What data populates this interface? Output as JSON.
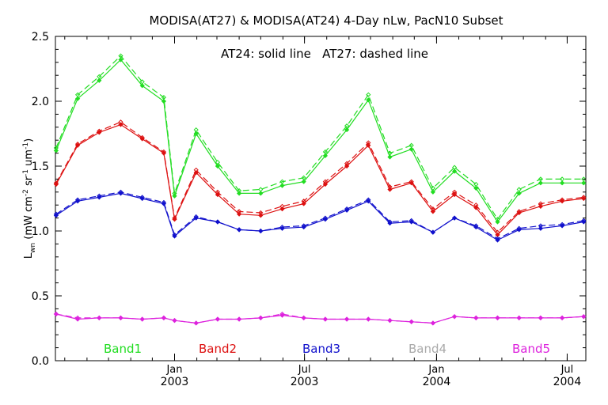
{
  "chart_data": {
    "type": "line",
    "title": "MODISA(AT27) & MODISA(AT24) 4-Day nLw, PacN10 Subset",
    "annotation": "AT24: solid line   AT27: dashed line",
    "ylabel": {
      "base": "L",
      "sub": "wn",
      "rest": [
        {
          "t": " (mW cm",
          "sup": false
        },
        {
          "t": "-2",
          "sup": true
        },
        {
          "t": " sr",
          "sup": false
        },
        {
          "t": "-1",
          "sup": true
        },
        {
          "t": " um",
          "sup": false
        },
        {
          "t": "-1",
          "sup": true
        },
        {
          "t": ")",
          "sup": false
        }
      ]
    },
    "xlabel": "",
    "ylim": [
      0.0,
      2.5
    ],
    "xlim": [
      "2002-07-19",
      "2004-07-27"
    ],
    "yticks": [
      "0.0",
      "0.5",
      "1.0",
      "1.5",
      "2.0",
      "2.5"
    ],
    "xticks": [
      {
        "date": "2003-01-01",
        "line1": "Jan",
        "line2": "2003"
      },
      {
        "date": "2003-07-01",
        "line1": "Jul",
        "line2": "2003"
      },
      {
        "date": "2004-01-01",
        "line1": "Jan",
        "line2": "2004"
      },
      {
        "date": "2004-07-01",
        "line1": "Jul",
        "line2": "2004"
      }
    ],
    "x": [
      "2002-07-20",
      "2002-08-19",
      "2002-09-18",
      "2002-10-18",
      "2002-11-17",
      "2002-12-17",
      "2003-01-01",
      "2003-01-31",
      "2003-03-02",
      "2003-04-01",
      "2003-05-01",
      "2003-05-31",
      "2003-06-30",
      "2003-07-30",
      "2003-08-29",
      "2003-09-28",
      "2003-10-28",
      "2003-11-27",
      "2003-12-27",
      "2004-01-26",
      "2004-02-25",
      "2004-03-26",
      "2004-04-25",
      "2004-05-25",
      "2004-06-24",
      "2004-07-24"
    ],
    "legend": [
      {
        "label": "Band1",
        "color": "#22dd22"
      },
      {
        "label": "Band2",
        "color": "#dd1111"
      },
      {
        "label": "Band3",
        "color": "#1111cc"
      },
      {
        "label": "Band4",
        "color": "#aaaaaa"
      },
      {
        "label": "Band5",
        "color": "#dd22dd"
      }
    ],
    "series": [
      {
        "name": "Band1",
        "sensor": "AT24",
        "style": "solid",
        "color": "#22dd22",
        "values": [
          1.62,
          2.02,
          2.16,
          2.32,
          2.12,
          2.0,
          1.27,
          1.75,
          1.5,
          1.29,
          1.29,
          1.35,
          1.38,
          1.58,
          1.78,
          2.01,
          1.57,
          1.63,
          1.3,
          1.46,
          1.33,
          1.07,
          1.29,
          1.37,
          1.37,
          1.37
        ]
      },
      {
        "name": "Band1",
        "sensor": "AT27",
        "style": "dashed",
        "color": "#22dd22",
        "values": [
          1.64,
          2.05,
          2.19,
          2.35,
          2.15,
          2.03,
          1.29,
          1.78,
          1.53,
          1.31,
          1.32,
          1.38,
          1.41,
          1.61,
          1.81,
          2.05,
          1.6,
          1.66,
          1.33,
          1.49,
          1.36,
          1.09,
          1.32,
          1.4,
          1.4,
          1.4
        ]
      },
      {
        "name": "Band2",
        "sensor": "AT24",
        "style": "solid",
        "color": "#dd1111",
        "values": [
          1.36,
          1.66,
          1.76,
          1.82,
          1.71,
          1.6,
          1.09,
          1.45,
          1.28,
          1.13,
          1.12,
          1.17,
          1.21,
          1.36,
          1.5,
          1.66,
          1.32,
          1.37,
          1.15,
          1.28,
          1.18,
          0.97,
          1.14,
          1.19,
          1.23,
          1.25
        ]
      },
      {
        "name": "Band2",
        "sensor": "AT27",
        "style": "dashed",
        "color": "#dd1111",
        "values": [
          1.37,
          1.67,
          1.77,
          1.84,
          1.72,
          1.61,
          1.1,
          1.47,
          1.3,
          1.15,
          1.14,
          1.19,
          1.23,
          1.38,
          1.52,
          1.68,
          1.34,
          1.38,
          1.17,
          1.3,
          1.2,
          0.99,
          1.15,
          1.21,
          1.24,
          1.26
        ]
      },
      {
        "name": "Band3",
        "sensor": "AT24",
        "style": "solid",
        "color": "#1111cc",
        "values": [
          1.12,
          1.23,
          1.26,
          1.29,
          1.25,
          1.21,
          0.96,
          1.1,
          1.07,
          1.01,
          1.0,
          1.02,
          1.03,
          1.09,
          1.16,
          1.23,
          1.06,
          1.07,
          0.99,
          1.1,
          1.03,
          0.93,
          1.01,
          1.02,
          1.04,
          1.07
        ]
      },
      {
        "name": "Band3",
        "sensor": "AT27",
        "style": "dashed",
        "color": "#1111cc",
        "values": [
          1.13,
          1.24,
          1.27,
          1.3,
          1.26,
          1.22,
          0.97,
          1.11,
          1.07,
          1.01,
          1.0,
          1.03,
          1.04,
          1.1,
          1.17,
          1.24,
          1.07,
          1.08,
          0.99,
          1.1,
          1.04,
          0.94,
          1.02,
          1.04,
          1.05,
          1.08
        ]
      },
      {
        "name": "Band5",
        "sensor": "AT24",
        "style": "solid",
        "color": "#dd22dd",
        "values": [
          0.36,
          0.32,
          0.33,
          0.33,
          0.32,
          0.33,
          0.31,
          0.29,
          0.32,
          0.32,
          0.33,
          0.35,
          0.33,
          0.32,
          0.32,
          0.32,
          0.31,
          0.3,
          0.29,
          0.34,
          0.33,
          0.33,
          0.33,
          0.33,
          0.33,
          0.34
        ]
      },
      {
        "name": "Band5",
        "sensor": "AT27",
        "style": "dashed",
        "color": "#dd22dd",
        "values": [
          0.36,
          0.33,
          0.33,
          0.33,
          0.32,
          0.33,
          0.31,
          0.29,
          0.32,
          0.32,
          0.33,
          0.36,
          0.33,
          0.32,
          0.32,
          0.32,
          0.31,
          0.3,
          0.29,
          0.34,
          0.33,
          0.33,
          0.33,
          0.33,
          0.33,
          0.34
        ]
      }
    ]
  }
}
